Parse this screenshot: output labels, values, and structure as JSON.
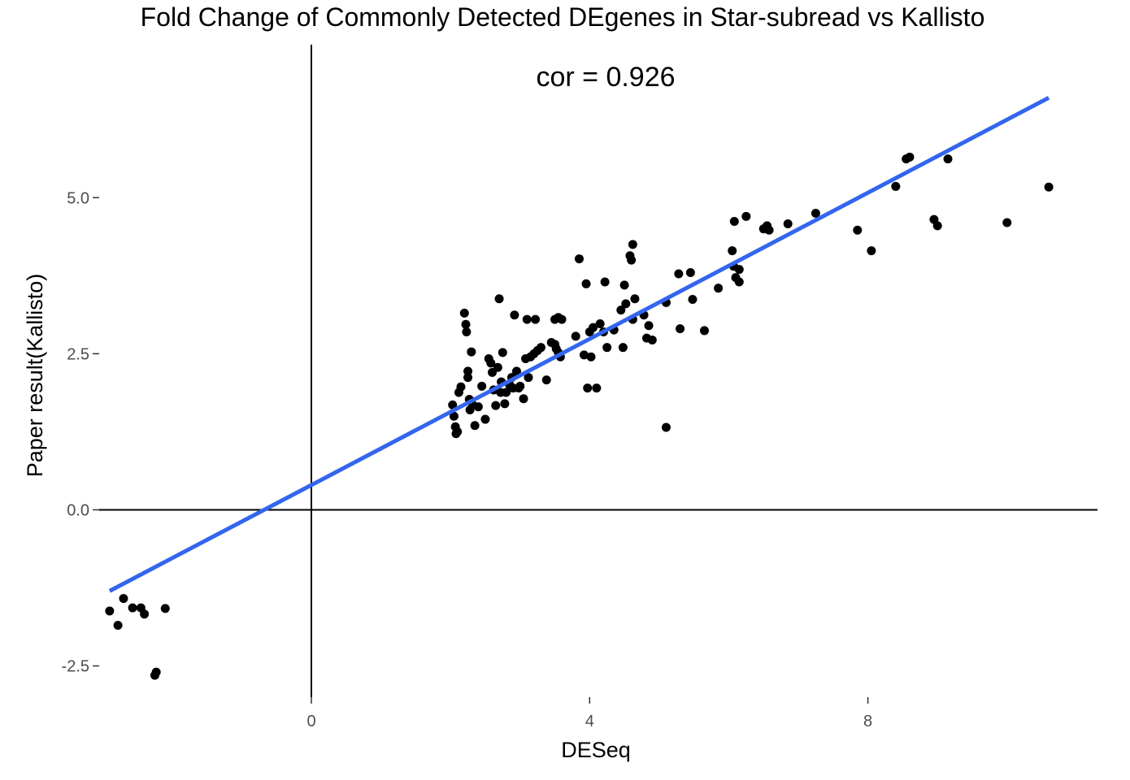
{
  "chart_data": {
    "type": "scatter",
    "title": "Fold Change of Commonly Detected DEgenes in Star-subread vs Kallisto",
    "xlabel": "DESeq",
    "ylabel": "Paper result(Kallisto)",
    "annotation": "cor = 0.926",
    "xlim": [
      -3.05,
      11.3
    ],
    "ylim": [
      -3.0,
      7.45
    ],
    "x_ticks": [
      0,
      4,
      8
    ],
    "x_tick_labels": [
      "0",
      "4",
      "8"
    ],
    "y_ticks": [
      -2.5,
      0.0,
      2.5,
      5.0
    ],
    "y_tick_labels": [
      "-2.5",
      "0.0",
      "2.5",
      "5.0"
    ],
    "zero_lines": true,
    "grid": false,
    "colors": {
      "points": "#000000",
      "fit_line": "#3366ee",
      "zero_lines": "#000000"
    },
    "fit_line": {
      "x": [
        -2.9,
        10.6
      ],
      "y": [
        -1.3,
        6.6
      ]
    },
    "points": {
      "x": [
        -2.9,
        -2.78,
        -2.7,
        -2.57,
        -2.45,
        -2.4,
        -2.25,
        -2.23,
        -2.1,
        2.03,
        2.05,
        2.07,
        2.08,
        2.1,
        2.12,
        2.15,
        2.2,
        2.22,
        2.23,
        2.25,
        2.25,
        2.27,
        2.28,
        2.3,
        2.32,
        2.35,
        2.4,
        2.45,
        2.5,
        2.55,
        2.58,
        2.6,
        2.62,
        2.65,
        2.68,
        2.7,
        2.72,
        2.73,
        2.75,
        2.78,
        2.8,
        2.85,
        2.88,
        2.9,
        2.92,
        2.95,
        2.98,
        3.0,
        3.05,
        3.08,
        3.1,
        3.12,
        3.15,
        3.2,
        3.22,
        3.25,
        3.3,
        3.38,
        3.45,
        3.5,
        3.5,
        3.52,
        3.55,
        3.55,
        3.58,
        3.6,
        3.8,
        3.85,
        3.92,
        3.95,
        3.97,
        4.0,
        4.02,
        4.05,
        4.1,
        4.15,
        4.2,
        4.22,
        4.25,
        4.35,
        4.45,
        4.48,
        4.5,
        4.52,
        4.58,
        4.6,
        4.62,
        4.62,
        4.65,
        4.78,
        4.82,
        4.85,
        4.9,
        5.1,
        5.1,
        5.28,
        5.3,
        5.45,
        5.48,
        5.65,
        5.85,
        6.05,
        6.07,
        6.08,
        6.1,
        6.15,
        6.15,
        6.25,
        6.5,
        6.55,
        6.58,
        6.85,
        7.25,
        7.85,
        8.05,
        8.4,
        8.55,
        8.6,
        8.95,
        9.0,
        9.15,
        10.0,
        10.6
      ],
      "y": [
        -1.62,
        -1.85,
        -1.42,
        -1.57,
        -1.57,
        -1.67,
        -2.65,
        -2.6,
        -1.58,
        1.68,
        1.5,
        1.33,
        1.22,
        1.25,
        1.88,
        1.97,
        3.15,
        2.97,
        2.85,
        2.22,
        2.12,
        1.77,
        1.6,
        2.53,
        1.68,
        1.35,
        1.65,
        1.98,
        1.45,
        2.42,
        2.35,
        2.2,
        1.92,
        1.67,
        2.28,
        3.38,
        1.88,
        2.05,
        2.52,
        1.7,
        1.88,
        2.0,
        2.12,
        1.95,
        3.12,
        2.22,
        1.95,
        1.98,
        1.78,
        2.42,
        3.05,
        2.12,
        2.45,
        2.5,
        3.05,
        2.55,
        2.6,
        2.08,
        2.68,
        3.05,
        2.65,
        2.58,
        2.52,
        3.08,
        2.45,
        3.05,
        2.78,
        4.02,
        2.48,
        3.62,
        1.95,
        2.85,
        2.45,
        2.92,
        1.95,
        2.98,
        2.85,
        3.65,
        2.6,
        2.88,
        3.2,
        2.6,
        3.6,
        3.3,
        4.07,
        4.0,
        4.25,
        3.05,
        3.38,
        3.12,
        2.75,
        2.95,
        2.72,
        1.32,
        3.32,
        3.78,
        2.9,
        3.8,
        3.37,
        2.87,
        3.55,
        4.15,
        3.9,
        4.62,
        3.72,
        3.65,
        3.85,
        4.7,
        4.5,
        4.55,
        4.48,
        4.58,
        4.75,
        4.48,
        4.15,
        5.18,
        5.62,
        5.65,
        4.65,
        4.55,
        5.62,
        4.6,
        5.17
      ]
    }
  }
}
